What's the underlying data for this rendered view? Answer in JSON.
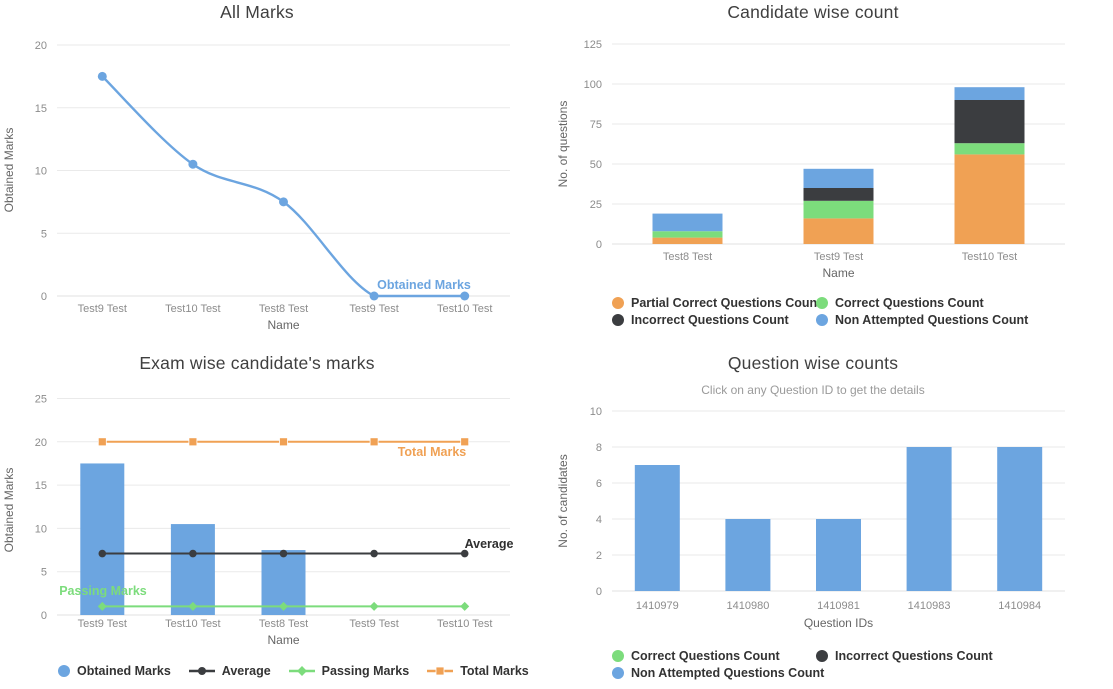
{
  "page": {
    "background": "#ffffff"
  },
  "colors": {
    "blue": "#6CA5E0",
    "orange": "#F0A154",
    "green": "#7CDC7C",
    "dark": "#3B3D40",
    "grid": "#EAEAEA",
    "tick_text": "#8C8C8C",
    "axis_title_text": "#666666",
    "title_text": "#3F3F3F",
    "subtitle_text": "#9A9A9A",
    "legend_text": "#333333"
  },
  "chart_data": [
    {
      "type": "line",
      "title": "All Marks",
      "xlabel": "Name",
      "ylabel": "Obtained Marks",
      "categories": [
        "Test9 Test",
        "Test10 Test",
        "Test8 Test",
        "Test9 Test",
        "Test10 Test"
      ],
      "series": [
        {
          "name": "Obtained Marks",
          "color": "#6CA5E0",
          "values": [
            17.5,
            10.5,
            7.5,
            0,
            0
          ]
        }
      ],
      "yticks": [
        0,
        5,
        10,
        15,
        20
      ],
      "ylim": [
        0,
        20
      ],
      "grid": true,
      "legend_position": "none",
      "annotations": [
        {
          "text": "Obtained Marks",
          "color": "#6CA5E0"
        }
      ]
    },
    {
      "type": "stacked-bar",
      "title": "Candidate wise count",
      "xlabel": "Name",
      "ylabel": "No. of questions",
      "categories": [
        "Test8 Test",
        "Test9 Test",
        "Test10 Test"
      ],
      "series": [
        {
          "name": "Partial Correct Questions Count",
          "color": "#F0A154",
          "values": [
            4,
            16,
            56
          ]
        },
        {
          "name": "Correct Questions Count",
          "color": "#7CDC7C",
          "values": [
            4,
            11,
            7
          ]
        },
        {
          "name": "Incorrect Questions Count",
          "color": "#3B3D40",
          "values": [
            0,
            8,
            27
          ]
        },
        {
          "name": "Non Attempted Questions Count",
          "color": "#6CA5E0",
          "values": [
            11,
            12,
            8
          ]
        }
      ],
      "yticks": [
        0,
        25,
        50,
        75,
        100,
        125
      ],
      "ylim": [
        0,
        125
      ],
      "grid": true,
      "legend_position": "bottom",
      "legend": [
        {
          "label": "Partial Correct Questions Count",
          "color": "#F0A154",
          "marker": "circle"
        },
        {
          "label": "Correct Questions Count",
          "color": "#7CDC7C",
          "marker": "circle"
        },
        {
          "label": "Incorrect Questions Count",
          "color": "#3B3D40",
          "marker": "circle"
        },
        {
          "label": "Non Attempted Questions Count",
          "color": "#6CA5E0",
          "marker": "circle"
        }
      ]
    },
    {
      "type": "bar-with-lines",
      "title": "Exam wise candidate's marks",
      "xlabel": "Name",
      "ylabel": "Obtained Marks",
      "categories": [
        "Test9 Test",
        "Test10 Test",
        "Test8 Test",
        "Test9 Test",
        "Test10 Test"
      ],
      "series": [
        {
          "name": "Obtained Marks",
          "kind": "bar",
          "color": "#6CA5E0",
          "values": [
            17.5,
            10.5,
            7.5,
            0,
            0
          ]
        },
        {
          "name": "Average",
          "kind": "line",
          "marker": "circle",
          "color": "#3B3D40",
          "label_color": "#2F2F2F",
          "values": [
            7.1,
            7.1,
            7.1,
            7.1,
            7.1
          ],
          "inplot_label": "Average"
        },
        {
          "name": "Passing Marks",
          "kind": "line",
          "marker": "diamond",
          "color": "#7CDC7C",
          "label_color": "#7CDC7C",
          "values": [
            1,
            1,
            1,
            1,
            1
          ],
          "inplot_label": "Passing Marks"
        },
        {
          "name": "Total Marks",
          "kind": "line",
          "marker": "square",
          "color": "#F0A154",
          "label_color": "#F0A154",
          "values": [
            20,
            20,
            20,
            20,
            20
          ],
          "inplot_label": "Total Marks"
        }
      ],
      "yticks": [
        0,
        5,
        10,
        15,
        20,
        25
      ],
      "ylim": [
        0,
        25
      ],
      "grid": true,
      "legend_position": "bottom",
      "legend": [
        {
          "label": "Obtained Marks",
          "color": "#6CA5E0",
          "marker": "circle"
        },
        {
          "label": "Average",
          "color": "#3B3D40",
          "marker": "line-circle"
        },
        {
          "label": "Passing Marks",
          "color": "#7CDC7C",
          "marker": "line-diamond"
        },
        {
          "label": "Total Marks",
          "color": "#F0A154",
          "marker": "line-square"
        }
      ]
    },
    {
      "type": "bar",
      "title": "Question wise counts",
      "subtitle": "Click on any Question ID to get the details",
      "xlabel": "Question IDs",
      "ylabel": "No. of candidates",
      "categories": [
        "1410979",
        "1410980",
        "1410981",
        "1410983",
        "1410984"
      ],
      "series": [
        {
          "name": "Non Attempted Questions Count",
          "color": "#6CA5E0",
          "values": [
            7,
            4,
            4,
            8,
            8
          ]
        }
      ],
      "yticks": [
        0,
        2,
        4,
        6,
        8,
        10
      ],
      "ylim": [
        0,
        10
      ],
      "grid": true,
      "legend_position": "bottom",
      "legend": [
        {
          "label": "Correct Questions Count",
          "color": "#7CDC7C",
          "marker": "circle"
        },
        {
          "label": "Incorrect Questions Count",
          "color": "#3B3D40",
          "marker": "circle"
        },
        {
          "label": "Non Attempted Questions Count",
          "color": "#6CA5E0",
          "marker": "circle"
        }
      ]
    }
  ]
}
